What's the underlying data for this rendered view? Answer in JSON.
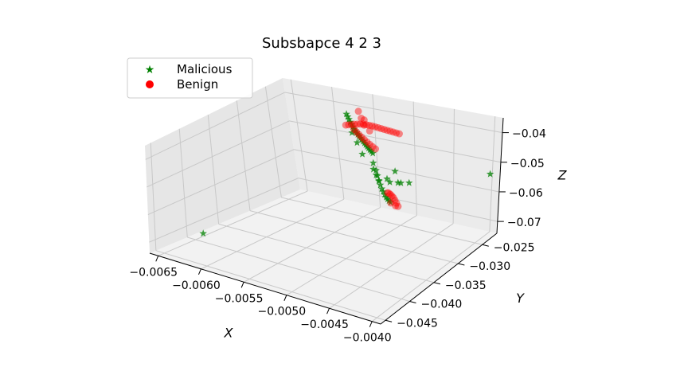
{
  "chart_data": {
    "type": "scatter",
    "projection": "3d",
    "title": "Subsbapce 4 2 3",
    "xlabel": "X",
    "ylabel": "Y",
    "zlabel": "Z",
    "xlim": [
      -0.0066,
      -0.0039
    ],
    "ylim": [
      -0.046,
      -0.022
    ],
    "zlim": [
      -0.074,
      -0.035
    ],
    "x_ticks": [
      -0.0065,
      -0.006,
      -0.0055,
      -0.005,
      -0.0045,
      -0.004
    ],
    "x_tick_labels": [
      "−0.0065",
      "−0.0060",
      "−0.0055",
      "−0.0050",
      "−0.0045",
      "−0.0040"
    ],
    "y_ticks": [
      -0.045,
      -0.04,
      -0.035,
      -0.03,
      -0.025
    ],
    "y_tick_labels": [
      "−0.045",
      "−0.040",
      "−0.035",
      "−0.030",
      "−0.025"
    ],
    "z_ticks": [
      -0.07,
      -0.06,
      -0.05,
      -0.04
    ],
    "z_tick_labels": [
      "−0.07",
      "−0.06",
      "−0.05",
      "−0.04"
    ],
    "grid": true,
    "legend_position": "top-left",
    "series": [
      {
        "name": "Malicious",
        "marker": "star",
        "color": "#008000",
        "points": [
          [
            -0.0064,
            -0.04,
            -0.071
          ],
          [
            -0.0057,
            -0.024,
            -0.041
          ],
          [
            -0.00565,
            -0.0245,
            -0.0412
          ],
          [
            -0.0056,
            -0.025,
            -0.0414
          ],
          [
            -0.00555,
            -0.0255,
            -0.0416
          ],
          [
            -0.0055,
            -0.026,
            -0.0417
          ],
          [
            -0.00545,
            -0.0265,
            -0.0418
          ],
          [
            -0.0054,
            -0.027,
            -0.0419
          ],
          [
            -0.00535,
            -0.0275,
            -0.0418
          ],
          [
            -0.0053,
            -0.028,
            -0.0417
          ],
          [
            -0.00525,
            -0.0285,
            -0.0416
          ],
          [
            -0.0052,
            -0.029,
            -0.0415
          ],
          [
            -0.00515,
            -0.0295,
            -0.0414
          ],
          [
            -0.0051,
            -0.03,
            -0.0413
          ],
          [
            -0.00505,
            -0.0305,
            -0.0412
          ],
          [
            -0.005,
            -0.031,
            -0.0411
          ],
          [
            -0.00495,
            -0.0315,
            -0.041
          ],
          [
            -0.0049,
            -0.032,
            -0.0409
          ],
          [
            -0.00485,
            -0.0325,
            -0.0408
          ],
          [
            -0.0048,
            -0.033,
            -0.0407
          ],
          [
            -0.00475,
            -0.0335,
            -0.0406
          ],
          [
            -0.0047,
            -0.034,
            -0.0405
          ],
          [
            -0.0055,
            -0.026,
            -0.0445
          ],
          [
            -0.0053,
            -0.028,
            -0.045
          ],
          [
            -0.0051,
            -0.03,
            -0.046
          ],
          [
            -0.0049,
            -0.031,
            -0.047
          ],
          [
            -0.0048,
            -0.032,
            -0.048
          ],
          [
            -0.00475,
            -0.0325,
            -0.049
          ],
          [
            -0.0047,
            -0.033,
            -0.05
          ],
          [
            -0.00465,
            -0.0335,
            -0.0505
          ],
          [
            -0.0046,
            -0.034,
            -0.051
          ],
          [
            -0.00455,
            -0.0345,
            -0.0512
          ],
          [
            -0.0045,
            -0.035,
            -0.0514
          ],
          [
            -0.00445,
            -0.0355,
            -0.0515
          ],
          [
            -0.0044,
            -0.036,
            -0.0514
          ],
          [
            -0.00435,
            -0.0365,
            -0.0512
          ],
          [
            -0.0043,
            -0.037,
            -0.051
          ],
          [
            -0.0049,
            -0.031,
            -0.049
          ],
          [
            -0.0048,
            -0.032,
            -0.0495
          ],
          [
            -0.0047,
            -0.033,
            -0.0498
          ],
          [
            -0.0046,
            -0.033,
            -0.0488
          ],
          [
            -0.0045,
            -0.034,
            -0.0485
          ],
          [
            -0.0044,
            -0.034,
            -0.0482
          ],
          [
            -0.0043,
            -0.035,
            -0.047
          ],
          [
            -0.0042,
            -0.035,
            -0.0465
          ],
          [
            -0.0045,
            -0.033,
            -0.046
          ],
          [
            -0.0039,
            -0.024,
            -0.052
          ]
        ]
      },
      {
        "name": "Benign",
        "marker": "circle",
        "color": "#ff0000",
        "points": [
          [
            -0.0055,
            -0.027,
            -0.041
          ],
          [
            -0.00545,
            -0.0272,
            -0.0405
          ],
          [
            -0.0054,
            -0.0274,
            -0.04
          ],
          [
            -0.00535,
            -0.0276,
            -0.0395
          ],
          [
            -0.0053,
            -0.0278,
            -0.039
          ],
          [
            -0.00525,
            -0.028,
            -0.0386
          ],
          [
            -0.0052,
            -0.0282,
            -0.0382
          ],
          [
            -0.00515,
            -0.0284,
            -0.038
          ],
          [
            -0.0051,
            -0.0286,
            -0.0378
          ],
          [
            -0.00505,
            -0.0288,
            -0.0376
          ],
          [
            -0.005,
            -0.029,
            -0.0375
          ],
          [
            -0.00495,
            -0.0292,
            -0.0374
          ],
          [
            -0.0049,
            -0.0294,
            -0.0373
          ],
          [
            -0.00485,
            -0.0296,
            -0.0372
          ],
          [
            -0.0048,
            -0.0298,
            -0.0371
          ],
          [
            -0.00475,
            -0.03,
            -0.037
          ],
          [
            -0.0047,
            -0.0302,
            -0.0369
          ],
          [
            -0.00465,
            -0.0304,
            -0.0368
          ],
          [
            -0.0046,
            -0.0306,
            -0.0367
          ],
          [
            -0.0054,
            -0.027,
            -0.042
          ],
          [
            -0.0053,
            -0.028,
            -0.0415
          ],
          [
            -0.0052,
            -0.029,
            -0.041
          ],
          [
            -0.0051,
            -0.03,
            -0.0405
          ],
          [
            -0.005,
            -0.031,
            -0.04
          ],
          [
            -0.0049,
            -0.032,
            -0.0395
          ],
          [
            -0.0048,
            -0.033,
            -0.039
          ],
          [
            -0.0047,
            -0.034,
            -0.0385
          ],
          [
            -0.0046,
            -0.035,
            -0.038
          ],
          [
            -0.0053,
            -0.0275,
            -0.035
          ],
          [
            -0.0052,
            -0.0285,
            -0.036
          ],
          [
            -0.0051,
            -0.0295,
            -0.037
          ],
          [
            -0.0052,
            -0.028,
            -0.037
          ],
          [
            -0.005,
            -0.03,
            -0.038
          ],
          [
            -0.0044,
            -0.036,
            -0.0495
          ],
          [
            -0.00435,
            -0.0365,
            -0.049
          ],
          [
            -0.0043,
            -0.037,
            -0.0487
          ],
          [
            -0.00425,
            -0.0375,
            -0.0485
          ],
          [
            -0.0042,
            -0.038,
            -0.0484
          ],
          [
            -0.00415,
            -0.0385,
            -0.0485
          ],
          [
            -0.0041,
            -0.039,
            -0.0487
          ],
          [
            -0.00405,
            -0.0395,
            -0.049
          ],
          [
            -0.0041,
            -0.0392,
            -0.0493
          ],
          [
            -0.0042,
            -0.0385,
            -0.0495
          ]
        ]
      }
    ]
  }
}
